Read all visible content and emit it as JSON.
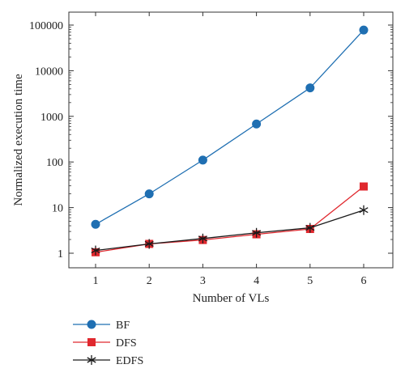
{
  "chart_data": {
    "type": "line",
    "title": "",
    "xlabel": "Number of VLs",
    "ylabel": "Normalized execution time",
    "yscale": "log",
    "xlim": [
      0.5,
      6.5
    ],
    "ylim": [
      0.5,
      100000
    ],
    "x_ticks": [
      1,
      2,
      3,
      4,
      5,
      6
    ],
    "x_tick_labels": [
      "1",
      "2",
      "3",
      "4",
      "5",
      "6"
    ],
    "y_ticks": [
      1,
      10,
      100,
      1000,
      10000,
      100000
    ],
    "y_tick_labels": [
      "1",
      "10",
      "100",
      "1000",
      "10000",
      "100000"
    ],
    "grid": false,
    "legend_position": "bottom-left",
    "x": [
      1,
      2,
      3,
      4,
      5,
      6
    ],
    "series": [
      {
        "name": "BF",
        "values": [
          4.3,
          20,
          110,
          680,
          4200,
          78000
        ],
        "color": "#1f6fb2",
        "marker": "circle"
      },
      {
        "name": "DFS",
        "values": [
          1.05,
          1.6,
          1.95,
          2.6,
          3.4,
          29
        ],
        "color": "#e0282e",
        "marker": "square"
      },
      {
        "name": "EDFS",
        "values": [
          1.15,
          1.6,
          2.1,
          2.8,
          3.6,
          8.8
        ],
        "color": "#1a1a1a",
        "marker": "asterisk"
      }
    ]
  }
}
